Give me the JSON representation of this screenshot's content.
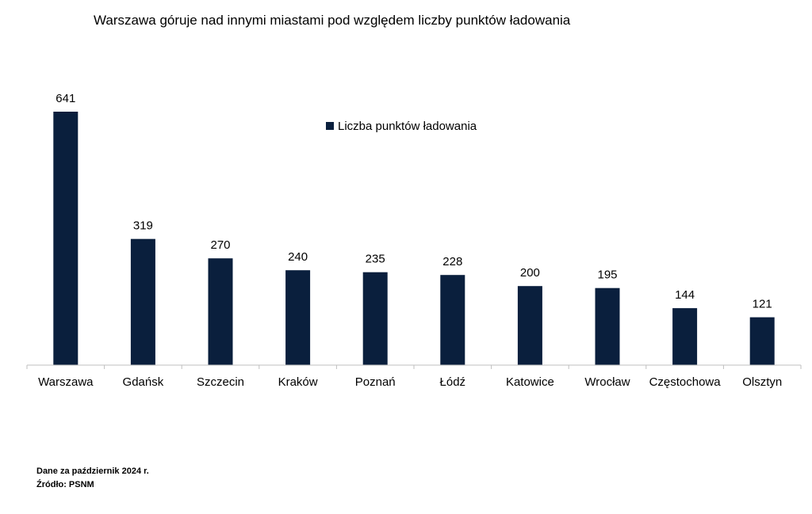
{
  "chart_data": {
    "type": "bar",
    "title": "Warszawa góruje nad innymi miastami pod względem liczby punktów ładowania",
    "categories": [
      "Warszawa",
      "Gdańsk",
      "Szczecin",
      "Kraków",
      "Poznań",
      "Łódź",
      "Katowice",
      "Wrocław",
      "Częstochowa",
      "Olsztyn"
    ],
    "series": [
      {
        "name": "Liczba punktów ładowania",
        "values": [
          641,
          319,
          270,
          240,
          235,
          228,
          200,
          195,
          144,
          121
        ]
      }
    ],
    "xlabel": "",
    "ylabel": "",
    "ylim": [
      0,
      700
    ],
    "grid": false,
    "legend_position": "top-center",
    "bar_color": "#0a1f3d"
  },
  "footnotes": {
    "line1": "Dane za październik 2024 r.",
    "line2": "Źródło: PSNM"
  }
}
